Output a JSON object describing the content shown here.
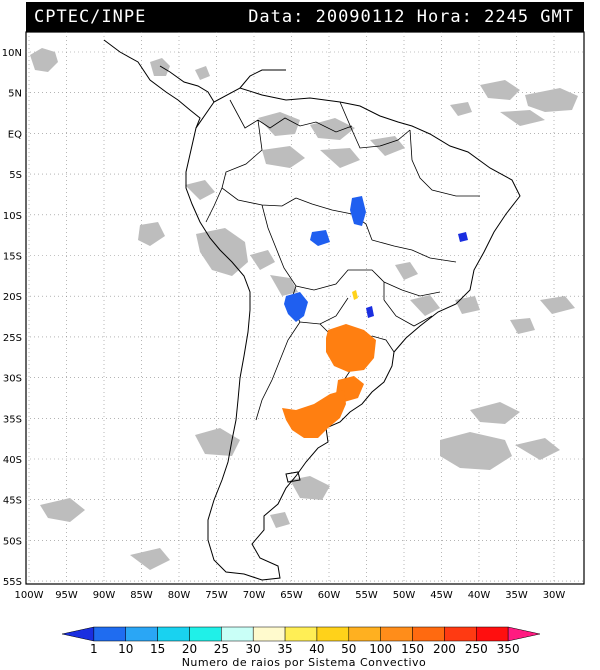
{
  "header": {
    "agency": "CPTEC/INPE",
    "date_time": "Data: 20090112 Hora: 2245 GMT"
  },
  "axes": {
    "lat_labels": [
      "10N",
      "5N",
      "EQ",
      "5S",
      "10S",
      "15S",
      "20S",
      "25S",
      "30S",
      "35S",
      "40S",
      "45S",
      "50S",
      "55S"
    ],
    "lon_labels": [
      "100W",
      "95W",
      "90W",
      "85W",
      "80W",
      "75W",
      "70W",
      "65W",
      "60W",
      "55W",
      "50W",
      "45W",
      "40W",
      "35W",
      "30W"
    ]
  },
  "legend": {
    "values": [
      "1",
      "10",
      "15",
      "20",
      "25",
      "30",
      "35",
      "40",
      "50",
      "100",
      "150",
      "200",
      "250",
      "350"
    ],
    "colors": [
      "#1a2ee0",
      "#1f6cf0",
      "#2aa6f5",
      "#19d2f0",
      "#20f0e8",
      "#c9fff7",
      "#fffacd",
      "#ffee55",
      "#ffd21a",
      "#ffb020",
      "#ff8d1a",
      "#ff6a10",
      "#ff3a12",
      "#ff0f0f",
      "#ff1a80"
    ],
    "caption": "Numero de raios por Sistema Convectivo"
  },
  "map_colors": {
    "cloud": "#bdbdbd",
    "storm_blue": "#1f5ff0",
    "storm_dark_blue": "#1a2ee0",
    "storm_orange": "#ff7f11",
    "storm_yellow": "#ffd21a"
  }
}
